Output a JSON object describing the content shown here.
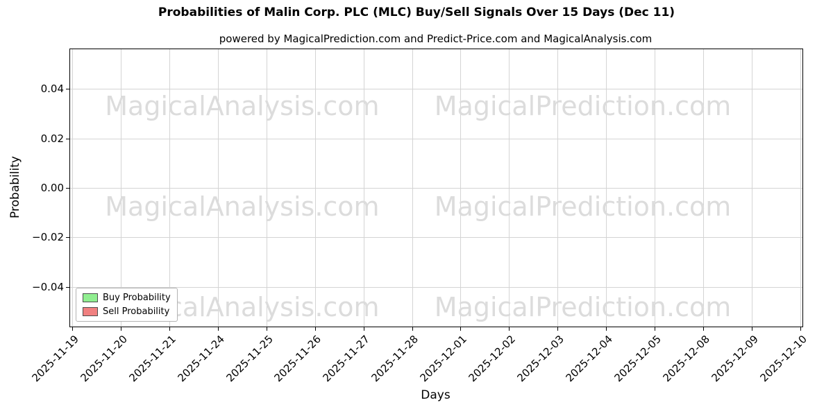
{
  "chart_data": {
    "type": "line",
    "title": "Probabilities of Malin Corp. PLC (MLC) Buy/Sell Signals Over 15 Days (Dec 11)",
    "subtitle": "powered by MagicalPrediction.com and Predict-Price.com and MagicalAnalysis.com",
    "xlabel": "Days",
    "ylabel": "Probability",
    "categories": [
      "2025-11-19",
      "2025-11-20",
      "2025-11-21",
      "2025-11-24",
      "2025-11-25",
      "2025-11-26",
      "2025-11-27",
      "2025-11-28",
      "2025-12-01",
      "2025-12-02",
      "2025-12-03",
      "2025-12-04",
      "2025-12-05",
      "2025-12-08",
      "2025-12-09",
      "2025-12-10"
    ],
    "yticks": [
      0.04,
      0.02,
      0.0,
      -0.02,
      -0.04
    ],
    "ytick_labels": [
      "0.04",
      "0.02",
      "0.00",
      "−0.02",
      "−0.04"
    ],
    "ylim": [
      -0.056,
      0.056
    ],
    "grid": true,
    "series": [
      {
        "name": "Buy Probability",
        "color": "#90ee90",
        "values": []
      },
      {
        "name": "Sell Probability",
        "color": "#f08080",
        "values": []
      }
    ],
    "legend": {
      "position": "lower left",
      "entries": [
        {
          "label": "Buy Probability",
          "color": "#90ee90"
        },
        {
          "label": "Sell Probability",
          "color": "#f08080"
        }
      ]
    },
    "watermarks": [
      {
        "text": "MagicalAnalysis.com"
      },
      {
        "text": "MagicalPrediction.com"
      }
    ],
    "watermark_color": "#dcdcdc"
  }
}
